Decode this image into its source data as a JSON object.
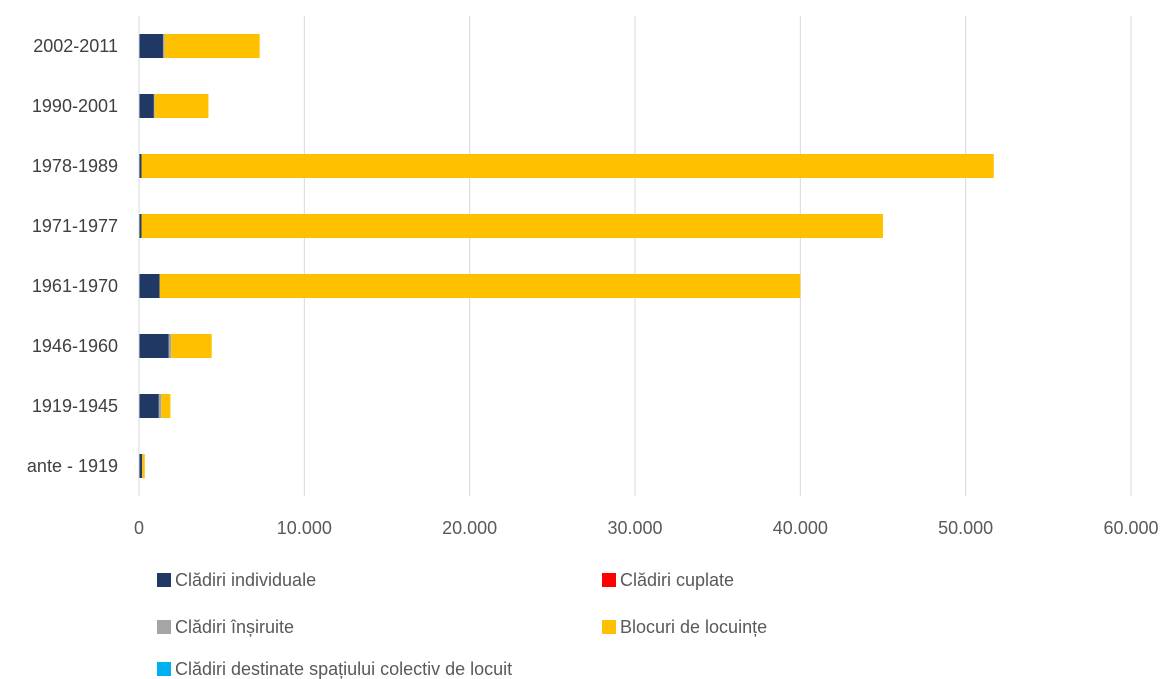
{
  "chart_data": {
    "type": "bar",
    "orientation": "horizontal",
    "stacked": true,
    "categories": [
      "2002-2011",
      "1990-2001",
      "1978-1989",
      "1971-1977",
      "1961-1970",
      "1946-1960",
      "1919-1945",
      "ante - 1919"
    ],
    "series": [
      {
        "name": "Clădiri individuale",
        "color": "#203864",
        "values": [
          1450,
          900,
          150,
          150,
          1250,
          1800,
          1200,
          180
        ]
      },
      {
        "name": "Clădiri cuplate",
        "color": "#FF0000",
        "values": [
          0,
          0,
          0,
          0,
          0,
          0,
          0,
          0
        ]
      },
      {
        "name": "Clădiri înșiruite",
        "color": "#A5A5A5",
        "values": [
          100,
          50,
          0,
          0,
          0,
          150,
          150,
          20
        ]
      },
      {
        "name": "Blocuri de locuințe",
        "color": "#FFC000",
        "values": [
          5750,
          3250,
          51550,
          44850,
          38750,
          2450,
          550,
          150
        ]
      },
      {
        "name": "Clădiri destinate spațiului colectiv de locuit",
        "color": "#00B0F0",
        "values": [
          0,
          0,
          0,
          0,
          0,
          0,
          0,
          0
        ]
      }
    ],
    "xlim": [
      0,
      60000
    ],
    "xticks": [
      "0",
      "10.000",
      "20.000",
      "30.000",
      "40.000",
      "50.000",
      "60.000"
    ],
    "grid": "vertical",
    "legend_position": "bottom"
  }
}
